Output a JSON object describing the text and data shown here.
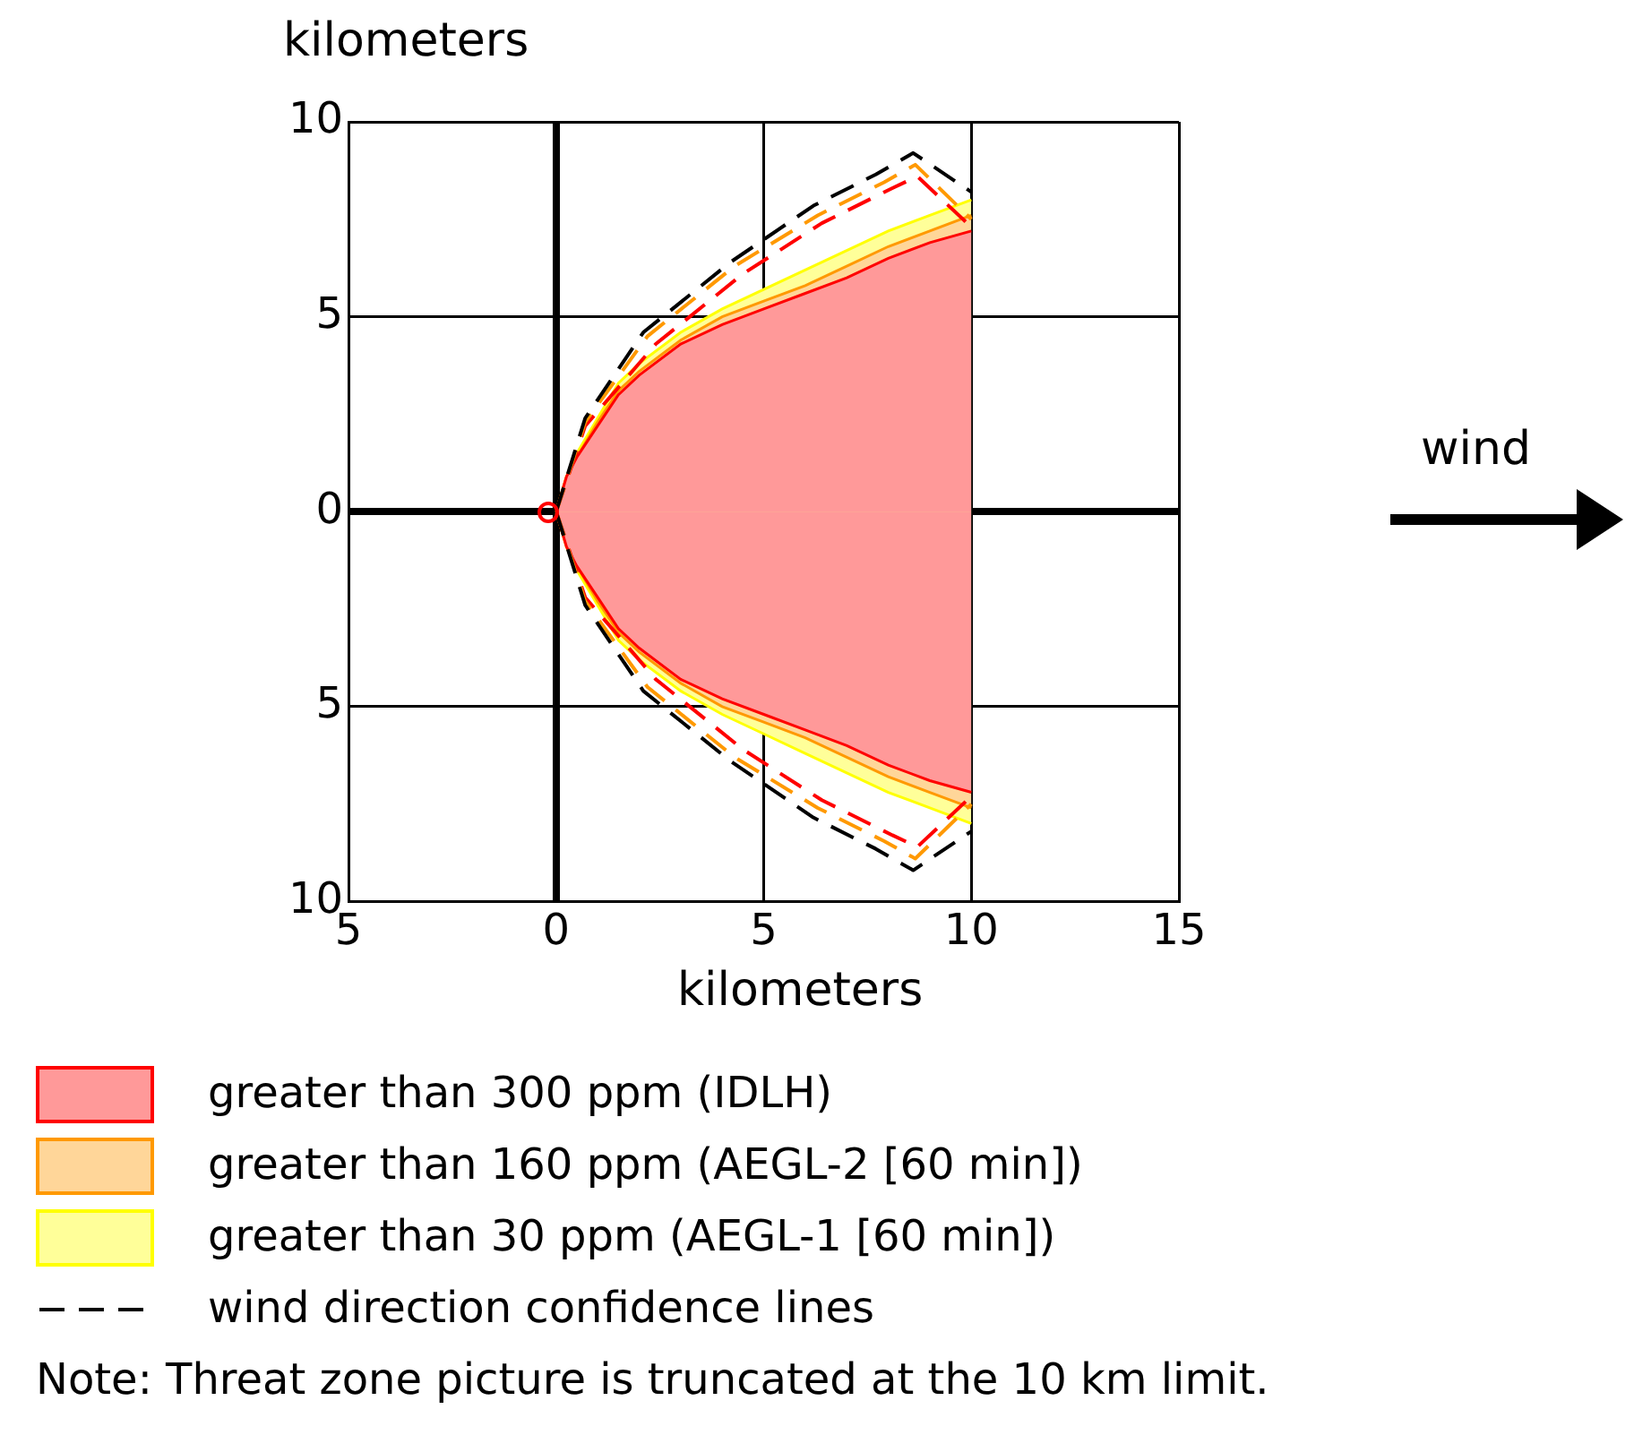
{
  "chart_data": {
    "type": "area",
    "xlabel": "kilometers",
    "ylabel": "kilometers",
    "xlim": [
      -5,
      15
    ],
    "xticks": [
      {
        "value": -5,
        "label": "5"
      },
      0,
      5,
      10,
      15
    ],
    "ylim": [
      -10,
      10
    ],
    "yticks": [
      {
        "value": -10,
        "label": "10"
      },
      {
        "value": -5,
        "label": "5"
      },
      0,
      5,
      10
    ],
    "grid": true,
    "legend": "bottom",
    "series": [
      {
        "name": "greater than 300 ppm (IDLH)",
        "color": "#ff0000",
        "x": [
          0,
          0.25,
          0.5,
          1,
          1.5,
          2,
          3,
          4,
          5,
          6,
          7,
          8,
          9,
          10
        ],
        "values": [
          0,
          0.9,
          1.4,
          2.2,
          3.0,
          3.5,
          4.3,
          4.8,
          5.2,
          5.6,
          6.0,
          6.5,
          6.9,
          7.2
        ]
      },
      {
        "color": "#ff0000",
        "x": [
          0,
          0.25,
          0.5,
          1,
          1.5,
          2,
          3,
          4,
          5,
          6,
          7,
          8,
          9,
          10
        ],
        "values": [
          0,
          -0.9,
          -1.4,
          -2.2,
          -3.0,
          -3.5,
          -4.3,
          -4.8,
          -5.2,
          -5.6,
          -6.0,
          -6.5,
          -6.9,
          -7.2
        ]
      },
      {
        "name": "greater than 160 ppm (AEGL-2 [60 min])",
        "color": "#ff9900",
        "x": [
          0,
          0.25,
          0.5,
          1,
          1.5,
          2,
          3,
          4,
          5,
          6,
          7,
          8,
          9,
          10
        ],
        "values": [
          0,
          0.9,
          1.4,
          2.3,
          3.1,
          3.6,
          4.4,
          5.0,
          5.4,
          5.8,
          6.3,
          6.8,
          7.2,
          7.6
        ]
      },
      {
        "color": "#ff9900",
        "x": [
          0,
          0.25,
          0.5,
          1,
          1.5,
          2,
          3,
          4,
          5,
          6,
          7,
          8,
          9,
          10
        ],
        "values": [
          0,
          -0.9,
          -1.4,
          -2.3,
          -3.1,
          -3.6,
          -4.4,
          -5.0,
          -5.4,
          -5.8,
          -6.3,
          -6.8,
          -7.2,
          -7.6
        ]
      },
      {
        "name": "greater than 30 ppm (AEGL-1 [60 min])",
        "color": "#ffff00",
        "x": [
          0,
          0.25,
          0.5,
          1,
          1.5,
          2,
          3,
          4,
          5,
          6,
          7,
          8,
          9,
          10
        ],
        "values": [
          0,
          0.9,
          1.5,
          2.4,
          3.3,
          3.8,
          4.6,
          5.2,
          5.7,
          6.2,
          6.7,
          7.2,
          7.6,
          8.0
        ]
      },
      {
        "color": "#ffff00",
        "x": [
          0,
          0.25,
          0.5,
          1,
          1.5,
          2,
          3,
          4,
          5,
          6,
          7,
          8,
          9,
          10
        ],
        "values": [
          0,
          -0.9,
          -1.5,
          -2.4,
          -3.3,
          -3.8,
          -4.6,
          -5.2,
          -5.7,
          -6.2,
          -6.7,
          -7.2,
          -7.6,
          -8.0
        ]
      },
      {
        "name": "wind direction confidence lines",
        "type": "line",
        "line_style": "dashed",
        "color": "#000000",
        "x": [
          0,
          0.7,
          2.1,
          4.2,
          6.2,
          7.7,
          8.6,
          10
        ],
        "values": [
          0,
          2.4,
          4.6,
          6.4,
          7.85,
          8.65,
          9.2,
          8.2
        ]
      },
      {
        "type": "line",
        "line_style": "dashed",
        "color": "#000000",
        "x": [
          0,
          0.7,
          2.1,
          4.2,
          6.2,
          7.7,
          8.6,
          10
        ],
        "values": [
          0,
          -2.4,
          -4.6,
          -6.4,
          -7.85,
          -8.65,
          -9.2,
          -8.2
        ]
      },
      {
        "type": "line",
        "line_style": "dashed",
        "color": "#ff9900",
        "x": [
          0,
          0.7,
          2.2,
          4.3,
          6.3,
          7.9,
          8.65,
          10
        ],
        "values": [
          0,
          2.3,
          4.5,
          6.3,
          7.6,
          8.45,
          8.9,
          7.5
        ]
      },
      {
        "type": "line",
        "line_style": "dashed",
        "color": "#ff9900",
        "x": [
          0,
          0.7,
          2.2,
          4.3,
          6.3,
          7.9,
          8.65,
          10
        ],
        "values": [
          0,
          -2.3,
          -4.5,
          -6.3,
          -7.6,
          -8.45,
          -8.9,
          -7.5
        ]
      },
      {
        "type": "line",
        "line_style": "dashed",
        "color": "#ff0000",
        "x": [
          0,
          0.7,
          2.4,
          4.5,
          6.4,
          8.1,
          8.7,
          10
        ],
        "values": [
          0,
          2.2,
          4.3,
          6.1,
          7.4,
          8.3,
          8.6,
          7.3
        ]
      },
      {
        "type": "line",
        "line_style": "dashed",
        "color": "#ff0000",
        "x": [
          0,
          0.7,
          2.4,
          4.5,
          6.4,
          8.1,
          8.7,
          10
        ],
        "values": [
          0,
          -2.2,
          -4.3,
          -6.1,
          -7.4,
          -8.3,
          -8.6,
          -7.3
        ]
      }
    ],
    "annotations": [
      "wind",
      "Note: Threat zone picture is truncated at the 10 km limit."
    ]
  }
}
